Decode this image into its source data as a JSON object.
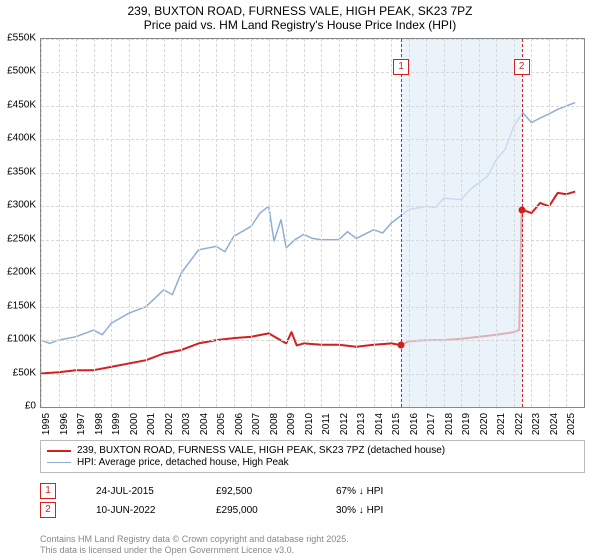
{
  "title_line1": "239, BUXTON ROAD, FURNESS VALE, HIGH PEAK, SK23 7PZ",
  "title_line2": "Price paid vs. HM Land Registry's House Price Index (HPI)",
  "chart": {
    "type": "line",
    "background_color": "#ffffff",
    "grid_color": "#d8d8d8",
    "grid_dash": true,
    "x_years": [
      1995,
      1996,
      1997,
      1998,
      1999,
      2000,
      2001,
      2002,
      2003,
      2004,
      2005,
      2006,
      2007,
      2008,
      2009,
      2010,
      2011,
      2012,
      2013,
      2014,
      2015,
      2016,
      2017,
      2018,
      2019,
      2020,
      2021,
      2022,
      2023,
      2024,
      2025
    ],
    "xlim": [
      1995,
      2026
    ],
    "ylim": [
      0,
      550000
    ],
    "ytick_step": 50000,
    "yticks": [
      "£0",
      "£50K",
      "£100K",
      "£150K",
      "£200K",
      "£250K",
      "£300K",
      "£350K",
      "£400K",
      "£450K",
      "£500K",
      "£550K"
    ],
    "series": [
      {
        "name": "price_paid",
        "color": "#d41f1f",
        "width": 2,
        "data": [
          [
            1995,
            50000
          ],
          [
            1996,
            52000
          ],
          [
            1997,
            55000
          ],
          [
            1998,
            55000
          ],
          [
            1999,
            60000
          ],
          [
            2000,
            65000
          ],
          [
            2001,
            70000
          ],
          [
            2002,
            80000
          ],
          [
            2003,
            85000
          ],
          [
            2004,
            95000
          ],
          [
            2005,
            100000
          ],
          [
            2006,
            103000
          ],
          [
            2007,
            105000
          ],
          [
            2008,
            110000
          ],
          [
            2009,
            95000
          ],
          [
            2009.3,
            112000
          ],
          [
            2009.6,
            92000
          ],
          [
            2010,
            95000
          ],
          [
            2011,
            93000
          ],
          [
            2012,
            93000
          ],
          [
            2013,
            90000
          ],
          [
            2014,
            93000
          ],
          [
            2015,
            95000
          ],
          [
            2015.56,
            92500
          ],
          [
            2016,
            98000
          ],
          [
            2017,
            100000
          ],
          [
            2018,
            100000
          ],
          [
            2019,
            102000
          ],
          [
            2020,
            105000
          ],
          [
            2021,
            108000
          ],
          [
            2022,
            112000
          ],
          [
            2022.3,
            115000
          ],
          [
            2022.44,
            295000
          ],
          [
            2023,
            290000
          ],
          [
            2023.5,
            305000
          ],
          [
            2024,
            300000
          ],
          [
            2024.5,
            320000
          ],
          [
            2025,
            318000
          ],
          [
            2025.5,
            322000
          ]
        ]
      },
      {
        "name": "hpi",
        "color": "#8faed6",
        "width": 1.5,
        "data": [
          [
            1995,
            100000
          ],
          [
            1995.5,
            95000
          ],
          [
            1996,
            100000
          ],
          [
            1997,
            105000
          ],
          [
            1998,
            115000
          ],
          [
            1998.5,
            108000
          ],
          [
            1999,
            125000
          ],
          [
            2000,
            140000
          ],
          [
            2001,
            150000
          ],
          [
            2002,
            175000
          ],
          [
            2002.5,
            168000
          ],
          [
            2003,
            200000
          ],
          [
            2004,
            235000
          ],
          [
            2005,
            240000
          ],
          [
            2005.5,
            232000
          ],
          [
            2006,
            255000
          ],
          [
            2007,
            270000
          ],
          [
            2007.5,
            290000
          ],
          [
            2008,
            300000
          ],
          [
            2008.3,
            248000
          ],
          [
            2008.7,
            280000
          ],
          [
            2009,
            238000
          ],
          [
            2009.5,
            250000
          ],
          [
            2010,
            258000
          ],
          [
            2010.5,
            252000
          ],
          [
            2011,
            250000
          ],
          [
            2012,
            250000
          ],
          [
            2012.5,
            262000
          ],
          [
            2013,
            252000
          ],
          [
            2014,
            265000
          ],
          [
            2014.5,
            260000
          ],
          [
            2015,
            275000
          ],
          [
            2016,
            295000
          ],
          [
            2017,
            300000
          ],
          [
            2017.5,
            298000
          ],
          [
            2018,
            312000
          ],
          [
            2019,
            310000
          ],
          [
            2019.5,
            325000
          ],
          [
            2020,
            335000
          ],
          [
            2020.5,
            345000
          ],
          [
            2021,
            370000
          ],
          [
            2021.5,
            385000
          ],
          [
            2022,
            420000
          ],
          [
            2022.5,
            440000
          ],
          [
            2023,
            425000
          ],
          [
            2023.5,
            432000
          ],
          [
            2024,
            438000
          ],
          [
            2024.5,
            445000
          ],
          [
            2025,
            450000
          ],
          [
            2025.5,
            455000
          ]
        ]
      }
    ],
    "markers": [
      {
        "n": 1,
        "x": 2015.56,
        "y": 92500
      },
      {
        "n": 2,
        "x": 2022.44,
        "y": 295000
      }
    ],
    "shaded_x": [
      2015.56,
      2022.44
    ],
    "shade_color": "#e3eef8"
  },
  "legend": {
    "series1": {
      "color": "#d41f1f",
      "width": 2,
      "label": "239, BUXTON ROAD, FURNESS VALE, HIGH PEAK, SK23 7PZ (detached house)"
    },
    "series2": {
      "color": "#8faed6",
      "width": 1.5,
      "label": "HPI: Average price, detached house, High Peak"
    }
  },
  "sales_table": {
    "rows": [
      {
        "n": "1",
        "date": "24-JUL-2015",
        "price": "£92,500",
        "diff": "67% ↓ HPI"
      },
      {
        "n": "2",
        "date": "10-JUN-2022",
        "price": "£295,000",
        "diff": "30% ↓ HPI"
      }
    ]
  },
  "footer_line1": "Contains HM Land Registry data © Crown copyright and database right 2025.",
  "footer_line2": "This data is licensed under the Open Government Licence v3.0."
}
